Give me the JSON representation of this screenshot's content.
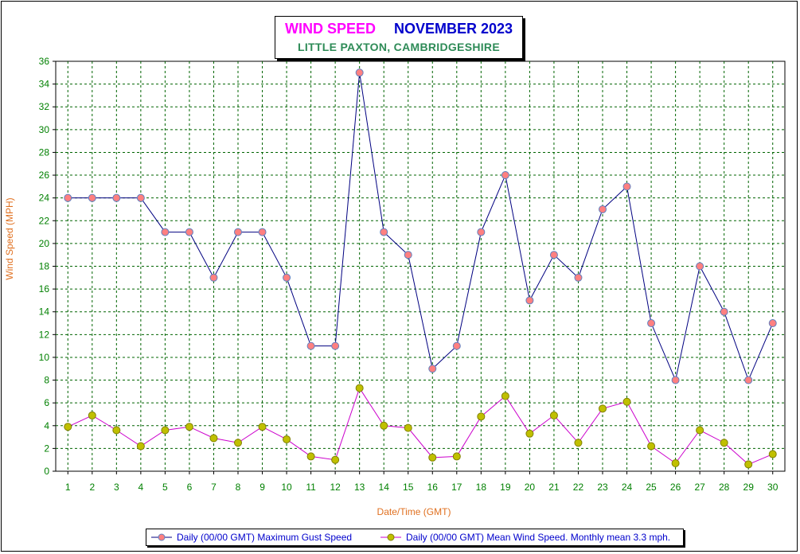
{
  "title": {
    "main": "WIND SPEED",
    "date": "NOVEMBER 2023",
    "location": "LITTLE PAXTON, CAMBRIDGESHIRE"
  },
  "colors": {
    "gust_line": "#000080",
    "gust_marker": "#ff8080",
    "gust_marker_edge": "#6080c0",
    "mean_line": "#cc00cc",
    "mean_marker": "#c0c000",
    "mean_marker_edge": "#808000",
    "grid": "#006400",
    "tick_label": "#008000"
  },
  "chart_data": {
    "type": "line",
    "xlabel": "Date/Time (GMT)",
    "ylabel": "Wind Speed (MPH)",
    "x": [
      1,
      2,
      3,
      4,
      5,
      6,
      7,
      8,
      9,
      10,
      11,
      12,
      13,
      14,
      15,
      16,
      17,
      18,
      19,
      20,
      21,
      22,
      23,
      24,
      25,
      26,
      27,
      28,
      29,
      30
    ],
    "xlim": [
      0.5,
      30.5
    ],
    "ylim": [
      0,
      36
    ],
    "yticks": [
      0,
      2,
      4,
      6,
      8,
      10,
      12,
      14,
      16,
      18,
      20,
      22,
      24,
      26,
      28,
      30,
      32,
      34,
      36
    ],
    "grid": true,
    "legend_position": "bottom",
    "series": [
      {
        "name": "Daily (00/00 GMT) Maximum Gust Speed",
        "values": [
          24,
          24,
          24,
          24,
          21,
          21,
          17,
          21,
          21,
          17,
          11,
          11,
          35,
          21,
          19,
          9,
          11,
          21,
          26,
          15,
          19,
          17,
          23,
          25,
          13,
          8,
          18,
          14,
          8,
          13
        ]
      },
      {
        "name": "Daily (00/00 GMT) Mean Wind Speed. Monthly mean 3.3 mph.",
        "values": [
          3.9,
          4.9,
          3.6,
          2.2,
          3.6,
          3.9,
          2.9,
          2.5,
          3.9,
          2.8,
          1.3,
          1.0,
          7.3,
          4.0,
          3.8,
          1.2,
          1.3,
          4.8,
          6.6,
          3.3,
          4.9,
          2.5,
          5.5,
          6.1,
          2.2,
          0.7,
          3.6,
          2.5,
          0.6,
          1.5
        ]
      }
    ]
  }
}
